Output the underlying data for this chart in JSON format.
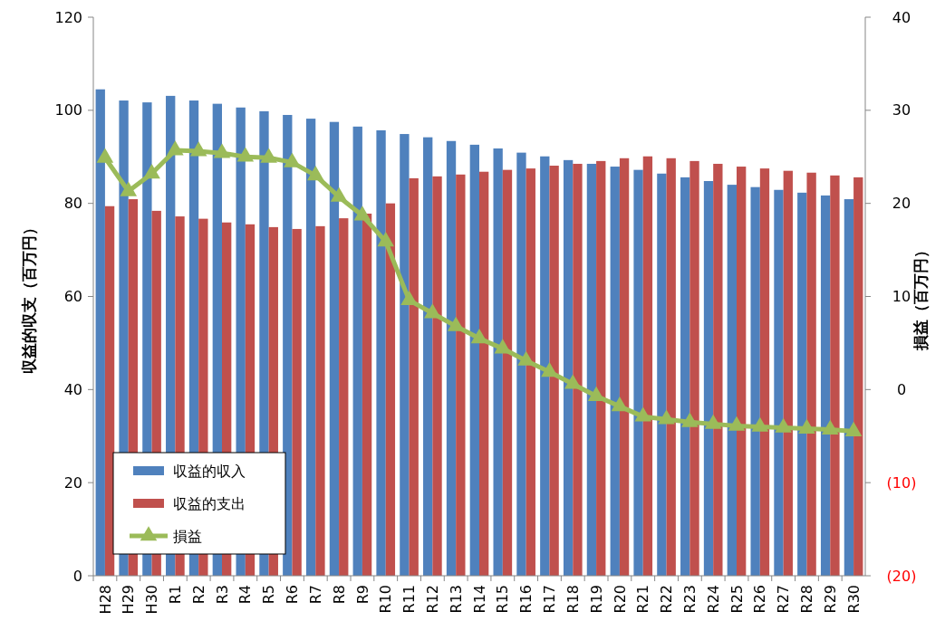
{
  "chart_data": {
    "type": "bar",
    "categories": [
      "H28",
      "H29",
      "H30",
      "R1",
      "R2",
      "R3",
      "R4",
      "R5",
      "R6",
      "R7",
      "R8",
      "R9",
      "R10",
      "R11",
      "R12",
      "R13",
      "R14",
      "R15",
      "R16",
      "R17",
      "R18",
      "R19",
      "R20",
      "R21",
      "R22",
      "R23",
      "R24",
      "R25",
      "R26",
      "R27",
      "R28",
      "R29",
      "R30"
    ],
    "ylabel": "収益的収支（百万円）",
    "y2label": "損益（百万円）",
    "ylim": [
      0,
      120
    ],
    "yticks": [
      0,
      20,
      40,
      60,
      80,
      100,
      120
    ],
    "y2lim": [
      -20,
      40
    ],
    "y2ticks": [
      {
        "value": -20,
        "label": "(20)"
      },
      {
        "value": -10,
        "label": "(10)"
      },
      0,
      10,
      20,
      30,
      40
    ],
    "legend": "bottom left",
    "grid": false,
    "series": [
      {
        "name": "収益的収入",
        "color": "#4f81bd",
        "values": [
          104.5,
          102.1,
          101.7,
          103.1,
          102.1,
          101.4,
          100.6,
          99.8,
          99.0,
          98.2,
          97.5,
          96.5,
          95.7,
          94.9,
          94.2,
          93.4,
          92.6,
          91.8,
          90.9,
          90.1,
          89.3,
          88.5,
          87.9,
          87.2,
          86.4,
          85.6,
          84.8,
          84.0,
          83.5,
          82.9,
          82.3,
          81.7,
          80.9
        ]
      },
      {
        "name": "収益的支出",
        "color": "#c0504d",
        "values": [
          79.4,
          80.9,
          78.4,
          77.2,
          76.7,
          75.9,
          75.5,
          74.9,
          74.5,
          75.1,
          76.8,
          77.8,
          80.0,
          85.4,
          85.8,
          86.2,
          86.8,
          87.2,
          87.5,
          88.1,
          88.5,
          89.1,
          89.7,
          90.1,
          89.7,
          89.1,
          88.5,
          87.9,
          87.5,
          87.0,
          86.6,
          86.0,
          85.6
        ]
      },
      {
        "name": "損益",
        "type": "line",
        "axis": "y2",
        "color": "#9bbb59",
        "marker": "triangle",
        "line_style": "solid",
        "values": [
          24.9,
          21.3,
          23.2,
          25.7,
          25.6,
          25.4,
          25.0,
          24.9,
          24.4,
          23.0,
          20.7,
          18.7,
          15.9,
          9.6,
          8.2,
          6.8,
          5.5,
          4.4,
          3.1,
          1.9,
          0.6,
          -0.7,
          -1.8,
          -2.9,
          -3.2,
          -3.5,
          -3.7,
          -3.9,
          -4.0,
          -4.1,
          -4.2,
          -4.3,
          -4.5
        ]
      }
    ]
  }
}
